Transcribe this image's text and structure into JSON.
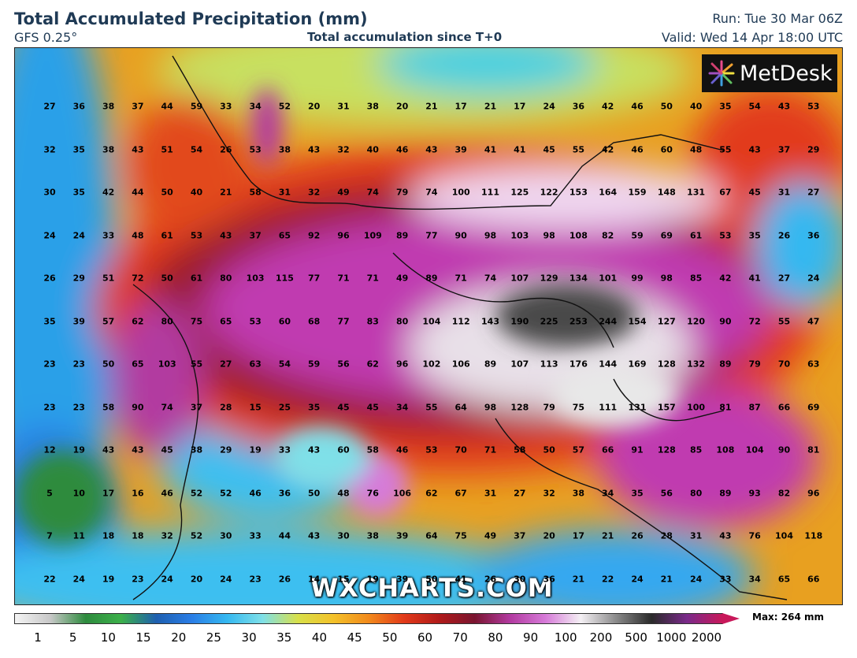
{
  "header": {
    "title": "Total Accumulated Precipitation (mm)",
    "model": "GFS 0.25°",
    "subtitle": "Total accumulation since T+0",
    "run": "Run: Tue 30 Mar 06Z",
    "valid": "Valid: Wed 14 Apr 18:00 UTC"
  },
  "logo": {
    "text": "MetDesk",
    "icon": "metdesk-starburst-icon"
  },
  "watermark": "WXCHARTS.COM",
  "legend": {
    "max_label": "Max: 264 mm",
    "ticks": [
      "1",
      "5",
      "10",
      "15",
      "20",
      "25",
      "30",
      "35",
      "40",
      "45",
      "50",
      "60",
      "70",
      "80",
      "90",
      "100",
      "200",
      "500",
      "1000",
      "2000"
    ],
    "colors": [
      "#f4f4f4",
      "#c8c8c8",
      "#2e8b3e",
      "#3cb04a",
      "#1e5fb0",
      "#2a7ee6",
      "#35b8f0",
      "#7fe0e8",
      "#d8e04a",
      "#f3c22a",
      "#f28a1c",
      "#e23a1a",
      "#b01a1a",
      "#7a1530",
      "#b23aa0",
      "#d67ad8",
      "#f4f0f4",
      "#8a8a8a",
      "#2a2a2a",
      "#7a2a8a",
      "#c8185a"
    ]
  },
  "map_values": {
    "rows": [
      [
        "27",
        "36",
        "38",
        "37",
        "44",
        "59",
        "33",
        "34",
        "52",
        "20",
        "31",
        "38",
        "20",
        "21",
        "17",
        "21",
        "17",
        "24",
        "36",
        "42",
        "46",
        "50",
        "40",
        "35",
        "54",
        "43",
        "53"
      ],
      [
        "32",
        "35",
        "38",
        "43",
        "51",
        "54",
        "26",
        "53",
        "38",
        "43",
        "32",
        "40",
        "46",
        "43",
        "39",
        "41",
        "41",
        "45",
        "55",
        "42",
        "46",
        "60",
        "48",
        "55",
        "43",
        "37",
        "29"
      ],
      [
        "30",
        "35",
        "42",
        "44",
        "50",
        "40",
        "21",
        "58",
        "31",
        "32",
        "49",
        "74",
        "79",
        "74",
        "100",
        "111",
        "125",
        "122",
        "153",
        "164",
        "159",
        "148",
        "131",
        "67",
        "45",
        "31",
        "27"
      ],
      [
        "24",
        "24",
        "33",
        "48",
        "61",
        "53",
        "43",
        "37",
        "65",
        "92",
        "96",
        "109",
        "89",
        "77",
        "90",
        "98",
        "103",
        "98",
        "108",
        "82",
        "59",
        "69",
        "61",
        "53",
        "35",
        "26",
        "36"
      ],
      [
        "26",
        "29",
        "51",
        "72",
        "50",
        "61",
        "80",
        "103",
        "115",
        "77",
        "71",
        "71",
        "49",
        "89",
        "71",
        "74",
        "107",
        "129",
        "134",
        "101",
        "99",
        "98",
        "85",
        "42",
        "41",
        "27",
        "24"
      ],
      [
        "35",
        "39",
        "57",
        "62",
        "80",
        "75",
        "65",
        "53",
        "60",
        "68",
        "77",
        "83",
        "80",
        "104",
        "112",
        "143",
        "190",
        "225",
        "253",
        "244",
        "154",
        "127",
        "120",
        "90",
        "72",
        "55",
        "47"
      ],
      [
        "23",
        "23",
        "50",
        "65",
        "103",
        "55",
        "27",
        "63",
        "54",
        "59",
        "56",
        "62",
        "96",
        "102",
        "106",
        "89",
        "107",
        "113",
        "176",
        "144",
        "169",
        "128",
        "132",
        "89",
        "79",
        "70",
        "63"
      ],
      [
        "23",
        "23",
        "58",
        "90",
        "74",
        "37",
        "28",
        "15",
        "25",
        "35",
        "45",
        "45",
        "34",
        "55",
        "64",
        "98",
        "128",
        "79",
        "75",
        "111",
        "131",
        "157",
        "100",
        "81",
        "87",
        "66",
        "69"
      ],
      [
        "12",
        "19",
        "43",
        "43",
        "45",
        "38",
        "29",
        "19",
        "33",
        "43",
        "60",
        "58",
        "46",
        "53",
        "70",
        "71",
        "58",
        "50",
        "57",
        "66",
        "91",
        "128",
        "85",
        "108",
        "104",
        "90",
        "81"
      ],
      [
        "5",
        "10",
        "17",
        "16",
        "46",
        "52",
        "52",
        "46",
        "36",
        "50",
        "48",
        "76",
        "106",
        "62",
        "67",
        "31",
        "27",
        "32",
        "38",
        "34",
        "35",
        "56",
        "80",
        "89",
        "93",
        "82",
        "96"
      ],
      [
        "7",
        "11",
        "18",
        "18",
        "32",
        "52",
        "30",
        "33",
        "44",
        "43",
        "30",
        "38",
        "39",
        "64",
        "75",
        "49",
        "37",
        "20",
        "17",
        "21",
        "26",
        "28",
        "31",
        "43",
        "76",
        "104",
        "118"
      ],
      [
        "22",
        "24",
        "19",
        "23",
        "24",
        "20",
        "24",
        "23",
        "26",
        "14",
        "15",
        "19",
        "39",
        "50",
        "41",
        "26",
        "30",
        "36",
        "21",
        "22",
        "24",
        "21",
        "24",
        "33",
        "34",
        "65",
        "66"
      ]
    ]
  }
}
